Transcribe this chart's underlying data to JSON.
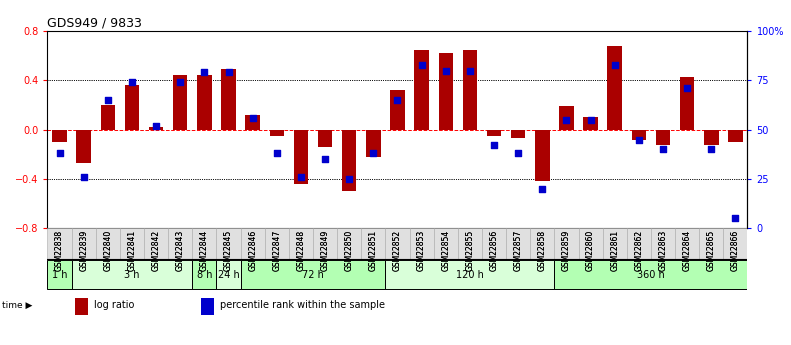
{
  "title": "GDS949 / 9833",
  "samples": [
    "GSM22838",
    "GSM22839",
    "GSM22840",
    "GSM22841",
    "GSM22842",
    "GSM22843",
    "GSM22844",
    "GSM22845",
    "GSM22846",
    "GSM22847",
    "GSM22848",
    "GSM22849",
    "GSM22850",
    "GSM22851",
    "GSM22852",
    "GSM22853",
    "GSM22854",
    "GSM22855",
    "GSM22856",
    "GSM22857",
    "GSM22858",
    "GSM22859",
    "GSM22860",
    "GSM22861",
    "GSM22862",
    "GSM22863",
    "GSM22864",
    "GSM22865",
    "GSM22866"
  ],
  "log_ratio": [
    -0.1,
    -0.27,
    0.2,
    0.36,
    0.02,
    0.44,
    0.44,
    0.49,
    0.12,
    -0.05,
    -0.44,
    -0.14,
    -0.5,
    -0.22,
    0.32,
    0.65,
    0.62,
    0.65,
    -0.05,
    -0.07,
    -0.42,
    0.19,
    0.1,
    0.68,
    -0.08,
    -0.12,
    0.43,
    -0.12,
    -0.1
  ],
  "percentile_rank": [
    38,
    26,
    65,
    74,
    52,
    74,
    79,
    79,
    56,
    38,
    26,
    35,
    25,
    38,
    65,
    83,
    80,
    80,
    42,
    38,
    20,
    55,
    55,
    83,
    45,
    40,
    71,
    40,
    5
  ],
  "time_groups": [
    {
      "label": "1 h",
      "start": 0,
      "end": 0,
      "color": "#b3ffb3"
    },
    {
      "label": "3 h",
      "start": 1,
      "end": 5,
      "color": "#d9ffd9"
    },
    {
      "label": "8 h",
      "start": 6,
      "end": 6,
      "color": "#b3ffb3"
    },
    {
      "label": "24 h",
      "start": 7,
      "end": 7,
      "color": "#d9ffd9"
    },
    {
      "label": "72 h",
      "start": 8,
      "end": 13,
      "color": "#b3ffb3"
    },
    {
      "label": "120 h",
      "start": 14,
      "end": 20,
      "color": "#d9ffd9"
    },
    {
      "label": "360 h",
      "start": 21,
      "end": 28,
      "color": "#b3ffb3"
    }
  ],
  "bar_color": "#aa0000",
  "dot_color": "#0000cc",
  "ylim_left": [
    -0.8,
    0.8
  ],
  "ylim_right": [
    0,
    100
  ],
  "yticks_left": [
    -0.8,
    -0.4,
    0.0,
    0.4,
    0.8
  ],
  "yticks_right": [
    0,
    25,
    50,
    75,
    100
  ],
  "ytick_labels_right": [
    "0",
    "25",
    "50",
    "75",
    "100%"
  ],
  "bar_width": 0.6,
  "dot_size": 22,
  "background_color": "#ffffff",
  "legend_items": [
    {
      "label": "log ratio",
      "color": "#aa0000"
    },
    {
      "label": "percentile rank within the sample",
      "color": "#0000cc"
    }
  ]
}
